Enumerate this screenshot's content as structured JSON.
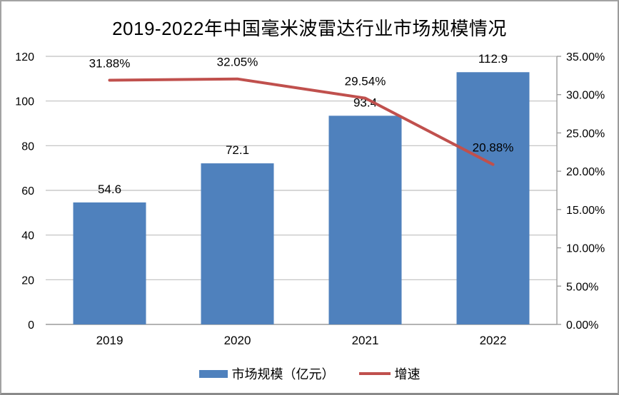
{
  "chart_data": {
    "type": "combo",
    "title": "2019-2022年中国毫米波雷达行业市场规模情况",
    "categories": [
      "2019",
      "2020",
      "2021",
      "2022"
    ],
    "series": [
      {
        "name": "市场规模（亿元）",
        "type": "bar",
        "axis": "left",
        "color": "#4F81BD",
        "values": [
          54.6,
          72.1,
          93.4,
          112.9
        ],
        "data_labels": [
          "54.6",
          "72.1",
          "93.4",
          "112.9"
        ]
      },
      {
        "name": "增速",
        "type": "line",
        "axis": "right",
        "color": "#C0504D",
        "values": [
          31.88,
          32.05,
          29.54,
          20.88
        ],
        "data_labels": [
          "31.88%",
          "32.05%",
          "29.54%",
          "20.88%"
        ]
      }
    ],
    "left_axis": {
      "min": 0,
      "max": 120,
      "tick_step": 20,
      "tick_labels": [
        "0",
        "20",
        "40",
        "60",
        "80",
        "100",
        "120"
      ]
    },
    "right_axis": {
      "min": 0,
      "max": 35,
      "tick_step": 5,
      "tick_labels": [
        "0.00%",
        "5.00%",
        "10.00%",
        "15.00%",
        "20.00%",
        "25.00%",
        "30.00%",
        "35.00%"
      ]
    },
    "legend": {
      "position": "bottom",
      "entries": [
        {
          "label": "市场规模（亿元）",
          "swatch": "bar",
          "color": "#4F81BD"
        },
        {
          "label": "增速",
          "swatch": "line",
          "color": "#C0504D"
        }
      ]
    },
    "grid": "horizontal",
    "colors": {
      "gridline": "#BFBFBF",
      "axis_line": "#9C9C9C",
      "text": "#000000",
      "background": "#FFFFFF"
    }
  }
}
